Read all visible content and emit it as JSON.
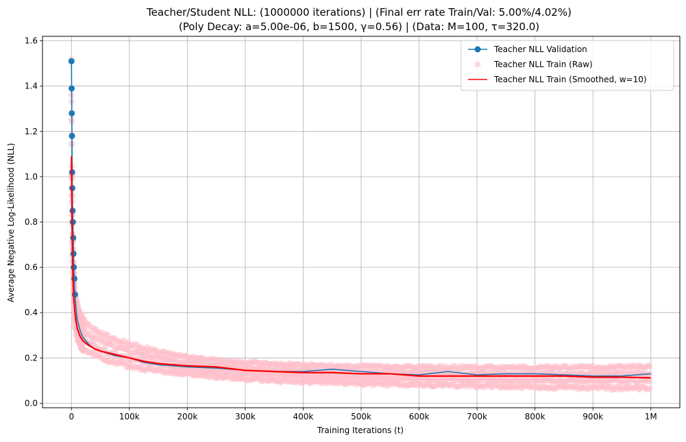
{
  "chart_data": {
    "type": "line",
    "title": "Teacher/Student NLL: (1000000 iterations) |  (Final err rate Train/Val: 5.00%/4.02%)",
    "subtitle": "(Poly Decay: a=5.00e-06, b=1500, γ=0.56) | (Data: M=100, τ=320.0)",
    "xlabel": "Training Iterations (t)",
    "ylabel": "Average Negative Log-Likelihood (NLL)",
    "xlim": [
      -50000,
      1050000
    ],
    "ylim": [
      -0.02,
      1.62
    ],
    "xticks": [
      0,
      100000,
      200000,
      300000,
      400000,
      500000,
      600000,
      700000,
      800000,
      900000,
      1000000
    ],
    "xtick_labels": [
      "0",
      "100k",
      "200k",
      "300k",
      "400k",
      "500k",
      "600k",
      "700k",
      "800k",
      "900k",
      "1M"
    ],
    "yticks": [
      0.0,
      0.2,
      0.4,
      0.6,
      0.8,
      1.0,
      1.2,
      1.4,
      1.6
    ],
    "ytick_labels": [
      "0.0",
      "0.2",
      "0.4",
      "0.6",
      "0.8",
      "1.0",
      "1.2",
      "1.4",
      "1.6"
    ],
    "grid": true,
    "legend_position": "top-right",
    "series": [
      {
        "name": "Teacher NLL Validation",
        "color": "#1f77b4",
        "style": "line-marker",
        "x": [
          0,
          300,
          600,
          900,
          1200,
          1500,
          2000,
          2500,
          3000,
          3500,
          4000,
          5000,
          6000,
          8000,
          10000,
          15000,
          20000,
          30000,
          40000,
          50000,
          75000,
          100000,
          125000,
          150000,
          175000,
          200000,
          250000,
          300000,
          350000,
          400000,
          425000,
          450000,
          500000,
          550000,
          600000,
          650000,
          700000,
          750000,
          800000,
          850000,
          900000,
          950000,
          1000000
        ],
        "y": [
          1.51,
          1.39,
          1.28,
          1.18,
          1.02,
          0.95,
          0.85,
          0.8,
          0.73,
          0.66,
          0.6,
          0.55,
          0.48,
          0.42,
          0.37,
          0.32,
          0.29,
          0.26,
          0.24,
          0.23,
          0.21,
          0.2,
          0.18,
          0.17,
          0.165,
          0.16,
          0.155,
          0.145,
          0.14,
          0.14,
          0.145,
          0.15,
          0.14,
          0.13,
          0.125,
          0.14,
          0.125,
          0.13,
          0.13,
          0.125,
          0.12,
          0.12,
          0.13
        ]
      },
      {
        "name": "Teacher NLL Train (Raw)",
        "color": "#ffc0cb",
        "style": "scatter-band",
        "x": [
          0,
          1000,
          2000,
          4000,
          6000,
          10000,
          15000,
          20000,
          30000,
          50000,
          75000,
          100000,
          150000,
          200000,
          250000,
          300000,
          350000,
          400000,
          450000,
          500000,
          600000,
          700000,
          800000,
          900000,
          1000000
        ],
        "y_low": [
          1.0,
          0.7,
          0.55,
          0.4,
          0.33,
          0.28,
          0.25,
          0.23,
          0.21,
          0.19,
          0.17,
          0.155,
          0.135,
          0.12,
          0.11,
          0.1,
          0.095,
          0.09,
          0.085,
          0.08,
          0.075,
          0.07,
          0.065,
          0.06,
          0.06
        ],
        "y_high": [
          1.54,
          1.1,
          0.8,
          0.62,
          0.5,
          0.44,
          0.4,
          0.38,
          0.35,
          0.32,
          0.29,
          0.27,
          0.235,
          0.21,
          0.195,
          0.185,
          0.18,
          0.175,
          0.17,
          0.17,
          0.165,
          0.165,
          0.165,
          0.165,
          0.17
        ]
      },
      {
        "name": "Teacher NLL Train (Smoothed, w=10)",
        "color": "#ff0000",
        "style": "line",
        "x": [
          0,
          500,
          1000,
          2000,
          3000,
          4000,
          6000,
          8000,
          10000,
          15000,
          20000,
          30000,
          40000,
          50000,
          75000,
          100000,
          125000,
          150000,
          200000,
          250000,
          300000,
          350000,
          400000,
          450000,
          500000,
          550000,
          600000,
          650000,
          700000,
          750000,
          800000,
          850000,
          900000,
          950000,
          1000000
        ],
        "y": [
          1.09,
          0.95,
          0.8,
          0.62,
          0.52,
          0.46,
          0.4,
          0.36,
          0.33,
          0.295,
          0.275,
          0.255,
          0.24,
          0.23,
          0.215,
          0.2,
          0.185,
          0.175,
          0.165,
          0.16,
          0.145,
          0.14,
          0.135,
          0.135,
          0.13,
          0.13,
          0.12,
          0.12,
          0.12,
          0.12,
          0.12,
          0.12,
          0.115,
          0.115,
          0.112
        ]
      }
    ]
  }
}
